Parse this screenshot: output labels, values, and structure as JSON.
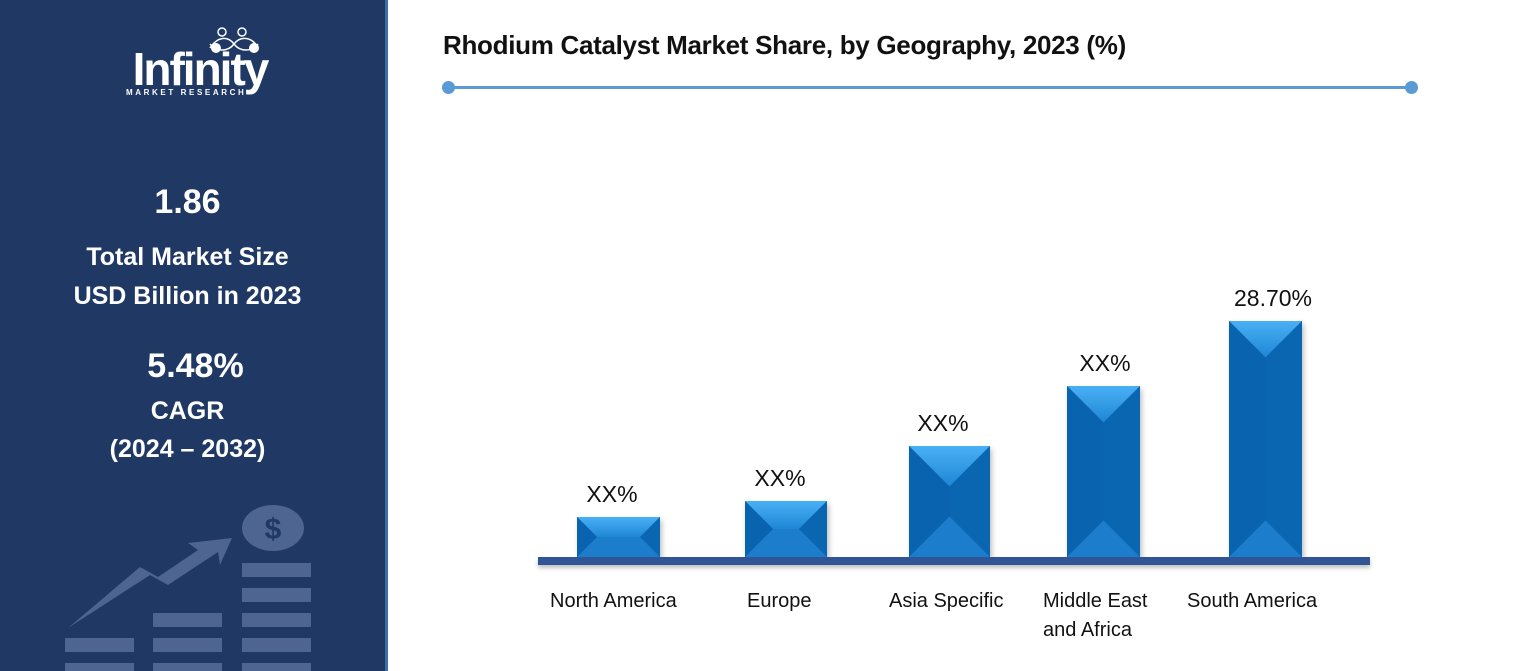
{
  "sidebar": {
    "logo": {
      "word": "Infinity",
      "sub": "MARKET RESEARCH"
    },
    "market_size_value": "1.86",
    "market_size_label_1": "Total Market Size",
    "market_size_label_2": "USD Billion in 2023",
    "cagr_value": "5.48%",
    "cagr_label": "CAGR",
    "cagr_period": "(2024 – 2032)",
    "decoration_icon": "growth-chart-dollar-icon"
  },
  "colors": {
    "sidebar_bg": "#1F3864",
    "bar": "#0A6EC0",
    "baseline": "#2F5597",
    "accent_rule": "#5B9BD5"
  },
  "chart_data": {
    "type": "bar",
    "title": "Rhodium Catalyst Market Share, by Geography, 2023 (%)",
    "categories": [
      "North America",
      "Europe",
      "Asia Specific",
      "Middle East and Africa",
      "South America"
    ],
    "category_lines": [
      [
        "North America"
      ],
      [
        "Europe"
      ],
      [
        "Asia Specific"
      ],
      [
        "Middle East",
        "and Africa"
      ],
      [
        "South America"
      ]
    ],
    "value_labels": [
      "XX%",
      "XX%",
      "XX%",
      "XX%",
      "28.70%"
    ],
    "values": [
      5,
      7,
      14,
      21,
      28.7
    ],
    "xlabel": "",
    "ylabel": "",
    "grid": false,
    "legend": "none"
  }
}
